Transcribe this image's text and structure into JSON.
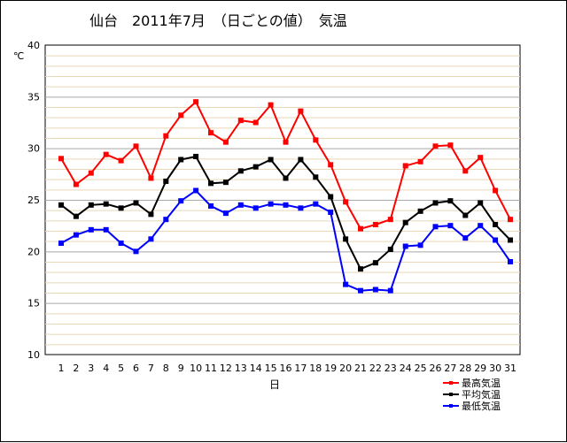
{
  "chart_data": {
    "type": "line",
    "title": "仙台　2011年7月　（日ごとの値）　気温",
    "xlabel": "日",
    "ylabel": "℃",
    "categories": [
      "1",
      "2",
      "3",
      "4",
      "5",
      "6",
      "7",
      "8",
      "9",
      "10",
      "11",
      "12",
      "13",
      "14",
      "15",
      "16",
      "17",
      "18",
      "19",
      "20",
      "21",
      "22",
      "23",
      "24",
      "25",
      "26",
      "27",
      "28",
      "29",
      "30",
      "31"
    ],
    "ylim": [
      10,
      40
    ],
    "y_ticks": [
      "10",
      "15",
      "20",
      "25",
      "30",
      "35",
      "40"
    ],
    "grid": true,
    "legend_position": "bottom-right",
    "series": [
      {
        "name": "最高気温",
        "color": "#ff0000",
        "values": [
          29.0,
          26.5,
          27.6,
          29.4,
          28.8,
          30.2,
          27.1,
          31.2,
          33.2,
          34.5,
          31.5,
          30.6,
          32.7,
          32.5,
          34.2,
          30.6,
          33.6,
          30.8,
          28.4,
          24.8,
          22.2,
          22.6,
          23.1,
          28.3,
          28.7,
          30.2,
          30.3,
          27.8,
          29.1,
          25.9,
          23.1
        ]
      },
      {
        "name": "平均気温",
        "color": "#000000",
        "values": [
          24.5,
          23.4,
          24.5,
          24.6,
          24.2,
          24.7,
          23.6,
          26.8,
          28.9,
          29.2,
          26.6,
          26.7,
          27.8,
          28.2,
          28.9,
          27.1,
          28.9,
          27.2,
          25.3,
          21.2,
          18.3,
          18.9,
          20.2,
          22.8,
          23.9,
          24.7,
          24.9,
          23.5,
          24.7,
          22.6,
          21.1
        ]
      },
      {
        "name": "最低気温",
        "color": "#0000ff",
        "values": [
          20.8,
          21.6,
          22.1,
          22.1,
          20.8,
          20.0,
          21.2,
          23.1,
          24.9,
          25.9,
          24.4,
          23.7,
          24.5,
          24.2,
          24.6,
          24.5,
          24.2,
          24.6,
          23.8,
          16.8,
          16.2,
          16.3,
          16.2,
          20.5,
          20.6,
          22.4,
          22.5,
          21.3,
          22.5,
          21.1,
          19.0
        ]
      }
    ]
  }
}
